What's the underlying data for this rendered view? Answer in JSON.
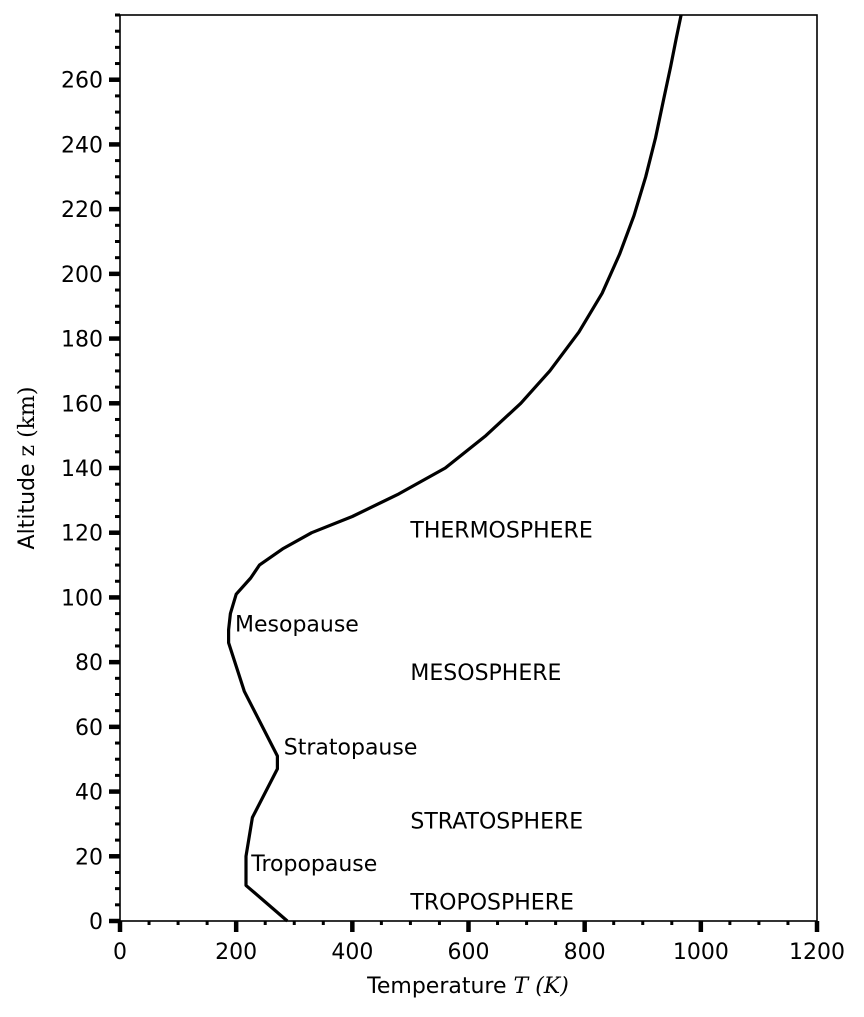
{
  "chart_data": {
    "type": "line",
    "title": "",
    "xlabel": {
      "text": "Temperature ",
      "math": "T (K)"
    },
    "ylabel": {
      "text": "Altitude ",
      "math": "z (km)"
    },
    "xlim": [
      0,
      1200
    ],
    "ylim": [
      0,
      280
    ],
    "x_major_ticks": [
      0,
      200,
      400,
      600,
      800,
      1000,
      1200
    ],
    "x_minor_step": 50,
    "y_major_ticks": [
      0,
      20,
      40,
      60,
      80,
      100,
      120,
      140,
      160,
      180,
      200,
      220,
      240,
      260
    ],
    "y_minor_step": 5,
    "grid": false,
    "series": [
      {
        "color": "#000000",
        "x": [
          288,
          217,
          217,
          228,
          271,
          271,
          214,
          187,
          187,
          190,
          200,
          225,
          240,
          280,
          330,
          400,
          480,
          560,
          630,
          690,
          740,
          790,
          830,
          860,
          885,
          905,
          922,
          936,
          948,
          958,
          966
        ],
        "y": [
          0,
          11,
          20,
          32,
          47,
          51,
          71,
          86,
          90,
          95,
          101,
          106,
          110,
          115,
          120,
          125,
          132,
          140,
          150,
          160,
          170,
          182,
          194,
          206,
          218,
          230,
          242,
          254,
          264,
          273,
          280
        ]
      }
    ],
    "annotations": [
      {
        "text": "THERMOSPHERE",
        "x": 500,
        "y": 121
      },
      {
        "text": "Mesopause",
        "x": 198,
        "y": 92
      },
      {
        "text": "MESOSPHERE",
        "x": 500,
        "y": 77
      },
      {
        "text": "Stratopause",
        "x": 282,
        "y": 54
      },
      {
        "text": "STRATOSPHERE",
        "x": 500,
        "y": 31
      },
      {
        "text": "Tropopause",
        "x": 226,
        "y": 18
      },
      {
        "text": "TROPOSPHERE",
        "x": 500,
        "y": 6
      }
    ]
  }
}
